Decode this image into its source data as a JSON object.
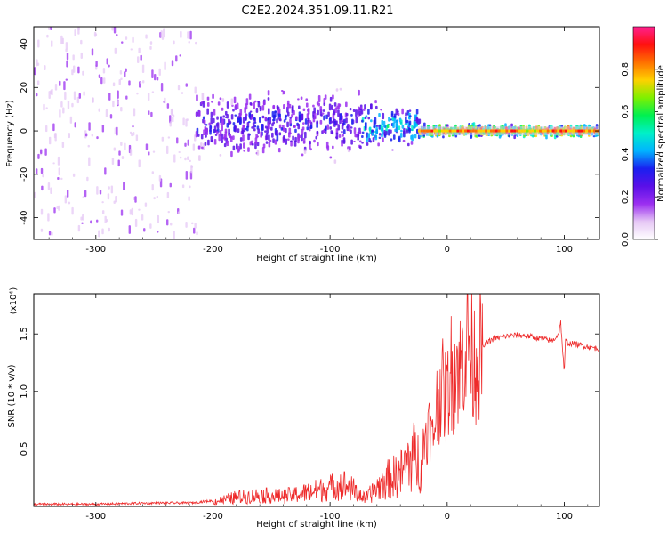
{
  "figure": {
    "title": "C2E2.2024.351.09.11.R21"
  },
  "chart_data": [
    {
      "type": "heatmap",
      "xlabel": "Height of straight line (km)",
      "ylabel": "Frequency (Hz)",
      "xlim": [
        -353,
        130
      ],
      "ylim": [
        -50,
        48
      ],
      "xticks": [
        -300,
        -200,
        -100,
        0,
        100
      ],
      "yticks": [
        -40,
        -20,
        0,
        20,
        40
      ],
      "colorbar": {
        "label": "Normalized spectral amplitude",
        "range": [
          0,
          1
        ],
        "ticks": [
          "0.0",
          "0.2",
          "0.4",
          "0.6",
          "0.8"
        ],
        "colors": [
          "#ffffff",
          "#e6c8f5",
          "#9b2ff0",
          "#5a10e8",
          "#1a20f0",
          "#00b4ff",
          "#00f0c8",
          "#00f050",
          "#80f000",
          "#ffd000",
          "#ff7000",
          "#ff1010",
          "#ff2090"
        ]
      },
      "description_of_structure": [
        {
          "x_range": [
            -353,
            -215
          ],
          "freq_spread": 48,
          "amplitude": 0.12,
          "note": "noisy scattered energy"
        },
        {
          "x_range": [
            -215,
            -75
          ],
          "freq_center": 3,
          "freq_halfwidth": 12,
          "amplitude": 0.3
        },
        {
          "x_range": [
            -75,
            -25
          ],
          "freq_center": 2,
          "freq_halfwidth": 8,
          "amplitude": 0.45
        },
        {
          "x_range": [
            -25,
            130
          ],
          "freq_center": 0,
          "freq_halfwidth": 2,
          "amplitude": 0.85
        }
      ]
    },
    {
      "type": "line",
      "title": "",
      "xlabel": "Height of straight line (km)",
      "ylabel": "SNR (10 * v/v)",
      "yscale_label": "(x10⁴)",
      "xlim": [
        -353,
        130
      ],
      "ylim": [
        0,
        1.85
      ],
      "xticks": [
        -300,
        -200,
        -100,
        0,
        100
      ],
      "yticks": [
        "0.5",
        "1.0",
        "1.5"
      ],
      "color": "#ee2a2a",
      "series": [
        {
          "x": [
            -353,
            -300,
            -250,
            -220,
            -200,
            -180,
            -160,
            -140,
            -120,
            -100,
            -90,
            -80,
            -70,
            -60,
            -50,
            -40,
            -30,
            -25,
            -20,
            -15,
            -12,
            -10,
            -8,
            -5,
            -3,
            0,
            3,
            5,
            8,
            10,
            12,
            15,
            18,
            20,
            22,
            25,
            28,
            30,
            35,
            40,
            50,
            60,
            70,
            80,
            90,
            95,
            97,
            99,
            100,
            101,
            103,
            110,
            120,
            130
          ],
          "y": [
            0.02,
            0.02,
            0.03,
            0.03,
            0.05,
            0.1,
            0.12,
            0.11,
            0.15,
            0.2,
            0.25,
            0.18,
            0.08,
            0.2,
            0.3,
            0.35,
            0.55,
            0.5,
            0.6,
            0.7,
            0.55,
            0.85,
            0.9,
            1.1,
            0.95,
            0.95,
            1.2,
            1.1,
            1.3,
            1.15,
            1.25,
            1.4,
            1.5,
            1.35,
            1.25,
            1.3,
            1.32,
            1.38,
            1.43,
            1.46,
            1.48,
            1.49,
            1.48,
            1.46,
            1.44,
            1.5,
            1.6,
            1.3,
            1.15,
            1.45,
            1.42,
            1.41,
            1.39,
            1.37
          ]
        }
      ]
    }
  ]
}
